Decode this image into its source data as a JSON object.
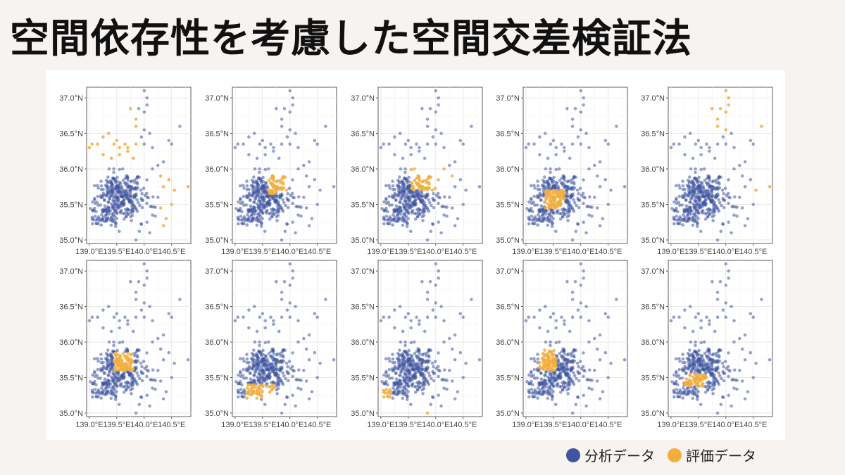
{
  "title": "空間依存性を考慮した空間交差検証法",
  "legend": {
    "analysis_label": "分析データ",
    "evaluation_label": "評価データ",
    "analysis_color": "#3f55a0",
    "evaluation_color": "#f2ae3d"
  },
  "chart_data": {
    "type": "scatter",
    "facets": 10,
    "layout": "2 rows x 5 columns",
    "xlim": [
      138.95,
      140.85
    ],
    "ylim": [
      34.95,
      37.15
    ],
    "x_ticks": [
      139.0,
      139.5,
      140.0,
      140.5
    ],
    "x_tick_labels": [
      "139.0°E",
      "139.5°E",
      "140.0°E",
      "140.5°E"
    ],
    "y_ticks": [
      35.0,
      35.5,
      36.0,
      36.5,
      37.0
    ],
    "y_tick_labels": [
      "35.0°N",
      "35.5°N",
      "36.0°N",
      "36.5°N",
      "37.0°N"
    ],
    "grid": true,
    "cluster": {
      "center": [
        139.55,
        35.65
      ],
      "sx": 0.22,
      "sy": 0.16,
      "n": 380
    },
    "scattered_points": [
      [
        140.0,
        37.1
      ],
      [
        140.05,
        37.0
      ],
      [
        140.05,
        36.9
      ],
      [
        139.9,
        36.85
      ],
      [
        140.0,
        36.8
      ],
      [
        139.75,
        36.85
      ],
      [
        139.85,
        36.7
      ],
      [
        140.65,
        36.6
      ],
      [
        139.85,
        36.6
      ],
      [
        140.0,
        36.55
      ],
      [
        139.95,
        36.45
      ],
      [
        140.1,
        36.5
      ],
      [
        139.35,
        36.5
      ],
      [
        139.25,
        36.45
      ],
      [
        139.5,
        36.4
      ],
      [
        139.65,
        36.35
      ],
      [
        139.45,
        36.35
      ],
      [
        139.55,
        36.3
      ],
      [
        139.7,
        36.3
      ],
      [
        139.85,
        36.35
      ],
      [
        140.0,
        36.35
      ],
      [
        140.15,
        36.3
      ],
      [
        139.15,
        36.35
      ],
      [
        139.25,
        36.2
      ],
      [
        139.4,
        36.15
      ],
      [
        139.55,
        36.2
      ],
      [
        139.7,
        36.25
      ],
      [
        139.8,
        36.15
      ],
      [
        140.45,
        36.4
      ],
      [
        140.5,
        36.35
      ],
      [
        139.0,
        36.3
      ],
      [
        139.05,
        36.35
      ],
      [
        140.25,
        36.05
      ],
      [
        140.35,
        36.1
      ],
      [
        140.15,
        36.0
      ],
      [
        140.3,
        35.9
      ],
      [
        140.45,
        35.85
      ],
      [
        140.55,
        35.7
      ],
      [
        140.35,
        35.75
      ],
      [
        140.8,
        35.75
      ],
      [
        140.25,
        35.6
      ],
      [
        140.5,
        35.5
      ],
      [
        140.3,
        35.45
      ],
      [
        140.4,
        35.3
      ],
      [
        140.35,
        35.2
      ],
      [
        140.1,
        35.1
      ],
      [
        139.85,
        35.0
      ],
      [
        140.05,
        35.25
      ],
      [
        140.15,
        35.35
      ]
    ],
    "evaluation_regions": [
      {
        "panel": 1,
        "region": "west and east periphery"
      },
      {
        "panel": 2,
        "region": "central-east"
      },
      {
        "panel": 3,
        "region": "north-east edge of main cluster"
      },
      {
        "panel": 4,
        "region": "center"
      },
      {
        "panel": 5,
        "region": "northern and eastern outliers"
      },
      {
        "panel": 6,
        "region": "central"
      },
      {
        "panel": 7,
        "region": "south-center"
      },
      {
        "panel": 8,
        "region": "south-west tip"
      },
      {
        "panel": 9,
        "region": "west"
      },
      {
        "panel": 10,
        "region": "south-central"
      }
    ]
  }
}
